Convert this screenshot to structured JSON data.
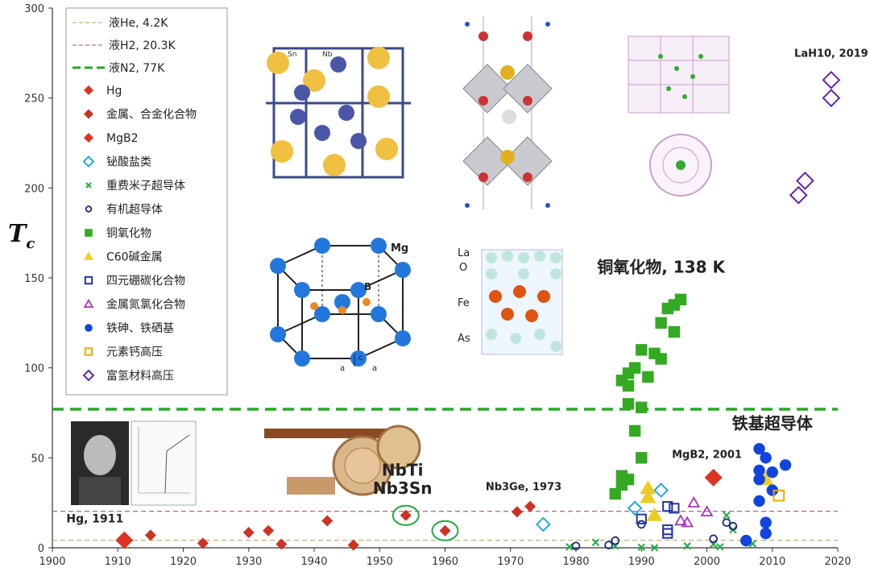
{
  "chart_data": {
    "type": "scatter",
    "title": "",
    "xlabel": "",
    "ylabel": "Tc",
    "xlim": [
      1900,
      2020
    ],
    "ylim": [
      0,
      300
    ],
    "xticks": [
      1900,
      1910,
      1920,
      1930,
      1940,
      1950,
      1960,
      1970,
      1980,
      1990,
      2000,
      2010,
      2020
    ],
    "yticks": [
      0,
      50,
      100,
      150,
      200,
      250,
      300
    ],
    "reference_lines": [
      {
        "name": "液He, 4.2K",
        "y": 4.2,
        "color": "#c8b070",
        "style": "dashed"
      },
      {
        "name": "液H2, 20.3K",
        "y": 20.3,
        "color": "#b07090",
        "style": "dashed"
      },
      {
        "name": "液N2, 77K",
        "y": 77,
        "color": "#22aa22",
        "style": "dashed-bold"
      }
    ],
    "series": [
      {
        "name": "Hg",
        "marker": "diamond-filled",
        "color": "#dd3322",
        "points": [
          [
            1911,
            4.2
          ]
        ]
      },
      {
        "name": "金属、合金化合物",
        "marker": "diamond-filled",
        "color": "#cc3322",
        "points": [
          [
            1915,
            7
          ],
          [
            1923,
            2.5
          ],
          [
            1930,
            8.5
          ],
          [
            1933,
            9.5
          ],
          [
            1935,
            2
          ],
          [
            1942,
            15
          ],
          [
            1946,
            1.5
          ],
          [
            1954,
            18
          ],
          [
            1960,
            9.5
          ],
          [
            1971,
            20
          ],
          [
            1973,
            23
          ]
        ]
      },
      {
        "name": "MgB2",
        "marker": "diamond-filled",
        "color": "#dd3322",
        "points": [
          [
            2001,
            39
          ]
        ]
      },
      {
        "name": "铋酸盐类",
        "marker": "diamond-open",
        "color": "#22aadd",
        "points": [
          [
            1975,
            13
          ],
          [
            1989,
            22
          ],
          [
            1993,
            32
          ]
        ]
      },
      {
        "name": "重费米子超导体",
        "marker": "x",
        "color": "#22aa44",
        "points": [
          [
            1979,
            0.5
          ],
          [
            1983,
            3
          ],
          [
            1986,
            1
          ],
          [
            1990,
            0.3
          ],
          [
            1992,
            0
          ],
          [
            1997,
            1
          ],
          [
            2001,
            2
          ],
          [
            2002,
            0.5
          ],
          [
            2003,
            18
          ],
          [
            2004,
            10
          ],
          [
            2007,
            2.3
          ]
        ]
      },
      {
        "name": "有机超导体",
        "marker": "circle-open",
        "color": "#1a2a7a",
        "points": [
          [
            1980,
            1
          ],
          [
            1985,
            1.5
          ],
          [
            1986,
            4
          ],
          [
            1990,
            13
          ],
          [
            2001,
            5
          ],
          [
            2003,
            14
          ],
          [
            2004,
            12
          ]
        ]
      },
      {
        "name": "铜氧化物",
        "marker": "square-filled",
        "color": "#33aa22",
        "points": [
          [
            1986,
            30
          ],
          [
            1987,
            35
          ],
          [
            1987,
            40
          ],
          [
            1987,
            93
          ],
          [
            1988,
            90
          ],
          [
            1988,
            80
          ],
          [
            1988,
            97
          ],
          [
            1989,
            65
          ],
          [
            1989,
            100
          ],
          [
            1990,
            50
          ],
          [
            1990,
            78
          ],
          [
            1990,
            110
          ],
          [
            1991,
            95
          ],
          [
            1992,
            108
          ],
          [
            1993,
            125
          ],
          [
            1993,
            105
          ],
          [
            1994,
            133
          ],
          [
            1995,
            120
          ],
          [
            1995,
            135
          ],
          [
            1996,
            138
          ],
          [
            1988,
            38
          ]
        ]
      },
      {
        "name": "C60碱金属",
        "marker": "triangle-filled",
        "color": "#eecc22",
        "points": [
          [
            1991,
            33
          ],
          [
            1991,
            28
          ],
          [
            1992,
            18
          ],
          [
            2009,
            38
          ]
        ]
      },
      {
        "name": "四元硼碳化合物",
        "marker": "square-open",
        "color": "#2233aa",
        "points": [
          [
            1990,
            16
          ],
          [
            1994,
            23
          ],
          [
            1994,
            10
          ],
          [
            1995,
            22
          ],
          [
            1994,
            8
          ]
        ]
      },
      {
        "name": "金属氮氯化合物",
        "marker": "triangle-open",
        "color": "#aa33bb",
        "points": [
          [
            1996,
            15
          ],
          [
            1997,
            14
          ],
          [
            1998,
            25
          ],
          [
            2000,
            20
          ]
        ]
      },
      {
        "name": "铁砷、铁硒基",
        "marker": "circle-filled",
        "color": "#1144dd",
        "points": [
          [
            2006,
            4
          ],
          [
            2008,
            55
          ],
          [
            2008,
            43
          ],
          [
            2008,
            38
          ],
          [
            2008,
            26
          ],
          [
            2009,
            50
          ],
          [
            2009,
            14
          ],
          [
            2009,
            8
          ],
          [
            2010,
            42
          ],
          [
            2010,
            32
          ],
          [
            2012,
            46
          ]
        ]
      },
      {
        "name": "元素钙高压",
        "marker": "square-open",
        "color": "#eeaa00",
        "points": [
          [
            2011,
            29
          ]
        ]
      },
      {
        "name": "富氢材料高压",
        "marker": "diamond-open",
        "color": "#6622aa",
        "points": [
          [
            2014,
            196
          ],
          [
            2015,
            204
          ],
          [
            2019,
            250
          ],
          [
            2019,
            260
          ]
        ]
      }
    ],
    "annotations": [
      {
        "text": "Hg, 1911",
        "x": 1906.5,
        "y": 14
      },
      {
        "text": "NbTi",
        "x": 1953.5,
        "y": 40
      },
      {
        "text": "Nb3Sn",
        "x": 1953.5,
        "y": 30
      },
      {
        "text": "Nb3Ge, 1973",
        "x": 1972,
        "y": 32
      },
      {
        "text": "MgB2, 2001",
        "x": 2000,
        "y": 50
      },
      {
        "text": "LaH10, 2019",
        "x": 2019,
        "y": 273
      },
      {
        "text": "铜氧化物, 138 K",
        "x": 1993,
        "y": 153
      },
      {
        "text": "铁基超导体",
        "x": 2010,
        "y": 66
      }
    ],
    "legend_placement": "top-left",
    "grid": false
  },
  "labels": {
    "tc_main": "T",
    "tc_sub": "c"
  },
  "images": {
    "crystal_labels": [
      "Sn",
      "Nb",
      "Mg",
      "B",
      "c",
      "a",
      "a",
      "La",
      "O",
      "Fe",
      "As"
    ]
  }
}
